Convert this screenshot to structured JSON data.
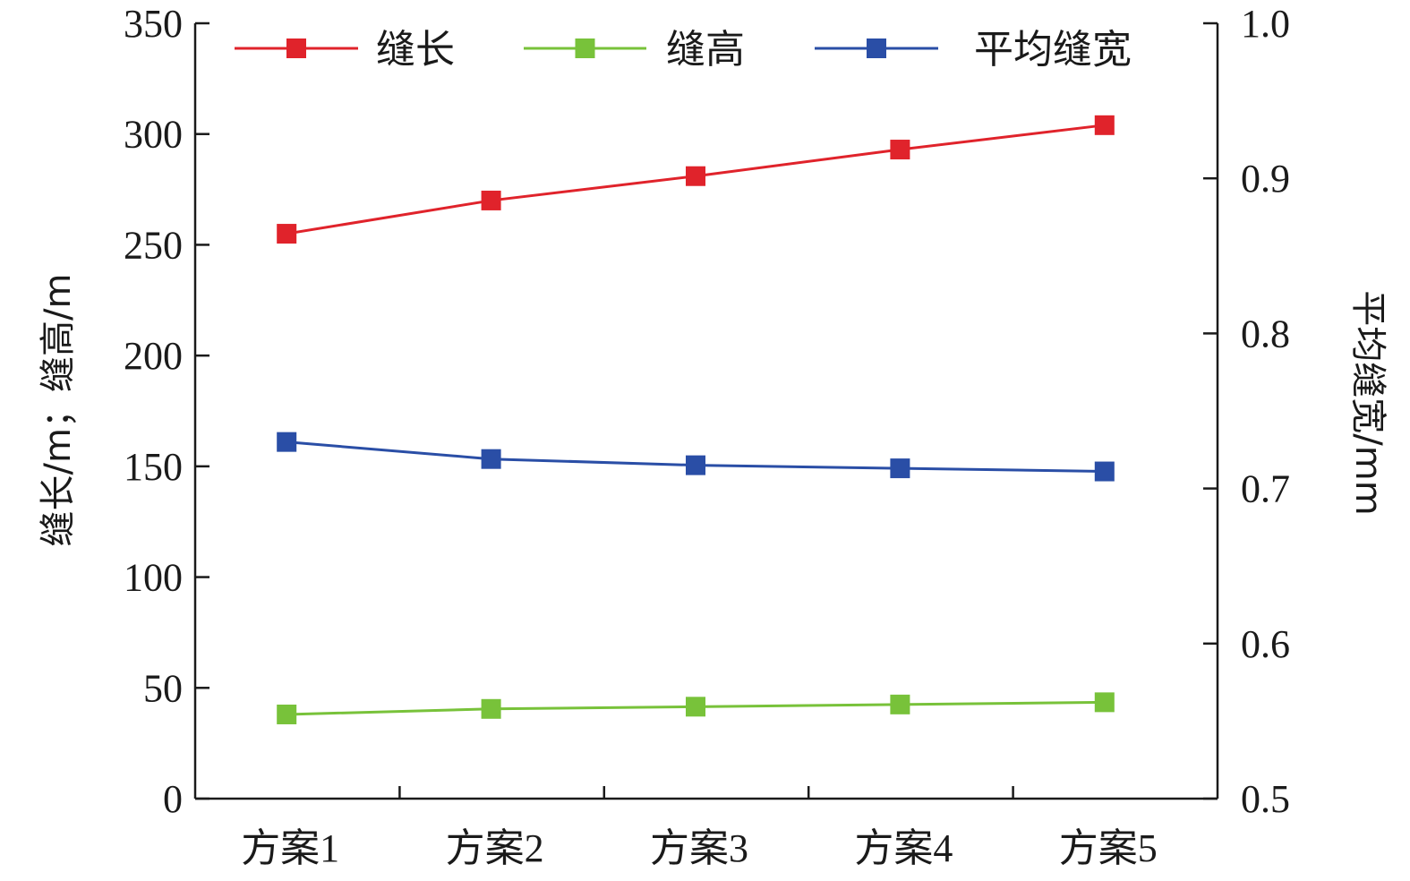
{
  "chart_data": {
    "type": "line",
    "categories": [
      "方案1",
      "方案2",
      "方案3",
      "方案4",
      "方案5"
    ],
    "series": [
      {
        "name": "缝长",
        "axis": "left",
        "color": "#e0232b",
        "values": [
          255,
          270,
          281,
          293,
          304
        ]
      },
      {
        "name": "缝高",
        "axis": "left",
        "color": "#78c23a",
        "values": [
          38,
          40.5,
          41.5,
          42.5,
          43.5
        ]
      },
      {
        "name": "平均缝宽",
        "axis": "right",
        "color": "#2a4ea6",
        "values": [
          0.73,
          0.719,
          0.715,
          0.713,
          0.711
        ]
      }
    ],
    "ylabel": "缝长/m；缝高/m",
    "y2label": "平均缝宽/mm",
    "ylim": [
      0,
      350
    ],
    "y2lim": [
      0.5,
      1.0
    ],
    "yticks": [
      "0",
      "50",
      "100",
      "150",
      "200",
      "250",
      "300",
      "350"
    ],
    "y2ticks": [
      "0.5",
      "0.6",
      "0.7",
      "0.8",
      "0.9",
      "1.0"
    ],
    "legend_position": "top",
    "grid": false
  }
}
